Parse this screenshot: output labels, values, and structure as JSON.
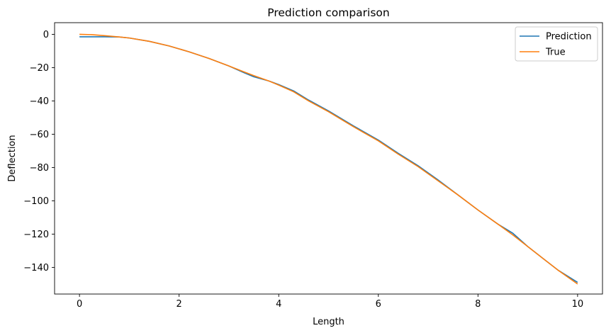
{
  "chart_data": {
    "type": "line",
    "title": "Prediction comparison",
    "xlabel": "Length",
    "ylabel": "Deflection",
    "xlim": [
      -0.5,
      10.5
    ],
    "ylim": [
      -156,
      7
    ],
    "xticks": [
      0,
      2,
      4,
      6,
      8,
      10
    ],
    "yticks": [
      0,
      -20,
      -40,
      -60,
      -80,
      -100,
      -120,
      -140
    ],
    "grid": false,
    "legend_position": "top-right",
    "series": [
      {
        "name": "Prediction",
        "color": "#1f77b4",
        "x": [
          0,
          0.5,
          0.8,
          1.0,
          1.4,
          1.8,
          2.2,
          2.6,
          3.0,
          3.3,
          3.5,
          3.8,
          4.0,
          4.3,
          4.6,
          5.0,
          5.5,
          6.0,
          6.4,
          6.8,
          7.2,
          7.6,
          8.0,
          8.4,
          8.7,
          9.0,
          9.3,
          9.6,
          10.0
        ],
        "y": [
          -1.5,
          -1.5,
          -1.6,
          -2.2,
          -4.2,
          -7.0,
          -10.5,
          -14.5,
          -19.0,
          -23.0,
          -25.5,
          -28.0,
          -30.2,
          -34.0,
          -39.5,
          -46.0,
          -55.0,
          -63.5,
          -71.5,
          -79.0,
          -87.5,
          -96.5,
          -105.5,
          -114.0,
          -119.5,
          -127.5,
          -134.5,
          -141.5,
          -149.0
        ]
      },
      {
        "name": "True",
        "color": "#ff7f0e",
        "x": [
          0,
          0.25,
          0.5,
          0.8,
          1.0,
          1.4,
          1.8,
          2.2,
          2.6,
          3.0,
          3.3,
          3.5,
          3.8,
          4.0,
          4.3,
          4.6,
          5.0,
          5.5,
          6.0,
          6.4,
          6.8,
          7.2,
          7.6,
          8.0,
          8.4,
          8.7,
          9.0,
          9.3,
          9.6,
          10.0
        ],
        "y": [
          0,
          -0.2,
          -0.8,
          -1.6,
          -2.2,
          -4.2,
          -7.0,
          -10.5,
          -14.5,
          -19.0,
          -22.5,
          -24.8,
          -28.0,
          -30.5,
          -34.5,
          -40.0,
          -46.5,
          -55.5,
          -64.0,
          -72.0,
          -79.5,
          -88.0,
          -96.5,
          -105.5,
          -114.0,
          -120.5,
          -127.5,
          -134.5,
          -141.5,
          -150.0
        ]
      }
    ]
  }
}
